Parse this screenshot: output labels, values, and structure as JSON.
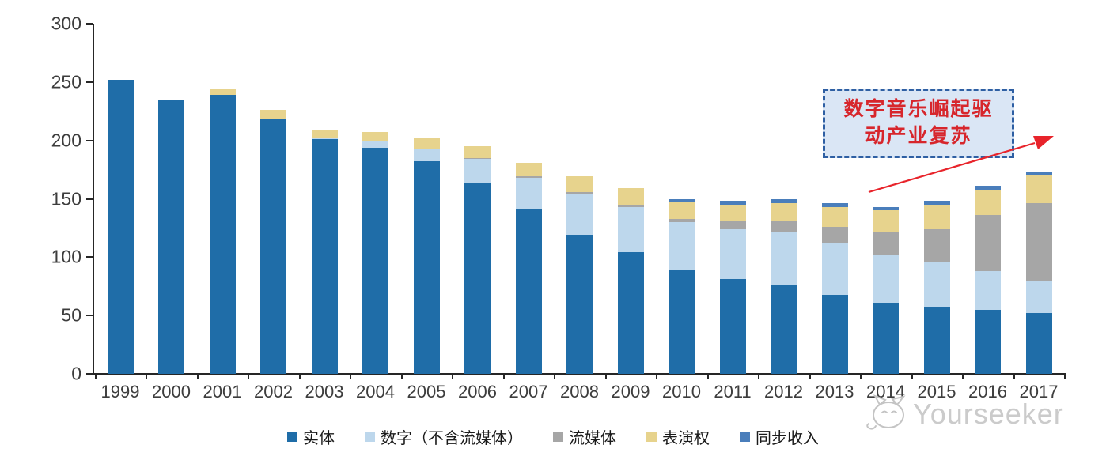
{
  "chart_data": {
    "type": "bar",
    "stacked": true,
    "title": "",
    "xlabel": "",
    "ylabel": "",
    "ylim": [
      0,
      300
    ],
    "y_ticks": [
      0,
      50,
      100,
      150,
      200,
      250,
      300
    ],
    "grid": false,
    "legend_position": "bottom",
    "categories": [
      "1999",
      "2000",
      "2001",
      "2002",
      "2003",
      "2004",
      "2005",
      "2006",
      "2007",
      "2008",
      "2009",
      "2010",
      "2011",
      "2012",
      "2013",
      "2014",
      "2015",
      "2016",
      "2017"
    ],
    "series": [
      {
        "name": "实体",
        "color": "#1F6DA8",
        "values": [
          252,
          234,
          239,
          219,
          201,
          194,
          182,
          163,
          141,
          119,
          104,
          89,
          81,
          76,
          68,
          61,
          57,
          55,
          52
        ]
      },
      {
        "name": "数字（不含流媒体）",
        "color": "#BDD7EC",
        "values": [
          0,
          0,
          0,
          0,
          1,
          6,
          11,
          21,
          27,
          35,
          39,
          41,
          43,
          45,
          44,
          41,
          39,
          33,
          28
        ]
      },
      {
        "name": "流媒体",
        "color": "#A6A6A6",
        "values": [
          0,
          0,
          0,
          0,
          0,
          0,
          0,
          1,
          1,
          2,
          2,
          3,
          7,
          10,
          14,
          19,
          28,
          48,
          66
        ]
      },
      {
        "name": "表演权",
        "color": "#E7D38D",
        "values": [
          0,
          0,
          5,
          7,
          7,
          7,
          9,
          10,
          12,
          13,
          14,
          14,
          14,
          15,
          17,
          19,
          21,
          22,
          24
        ]
      },
      {
        "name": "同步收入",
        "color": "#4A7EBB",
        "values": [
          0,
          0,
          0,
          0,
          0,
          0,
          0,
          0,
          0,
          0,
          0,
          3,
          3,
          4,
          3,
          3,
          3,
          3,
          3
        ]
      }
    ]
  },
  "annotation": {
    "line1": "数字音乐崛起驱",
    "line2": "动产业复苏",
    "text_color": "#D7262C",
    "box_fill": "#DAE6F5",
    "box_border": "#2E5FA3",
    "arrow_color": "#E8242B"
  },
  "watermark": {
    "text": "Yourseeker",
    "icon": "cat-logo-icon",
    "color": "#C9C9C9"
  }
}
